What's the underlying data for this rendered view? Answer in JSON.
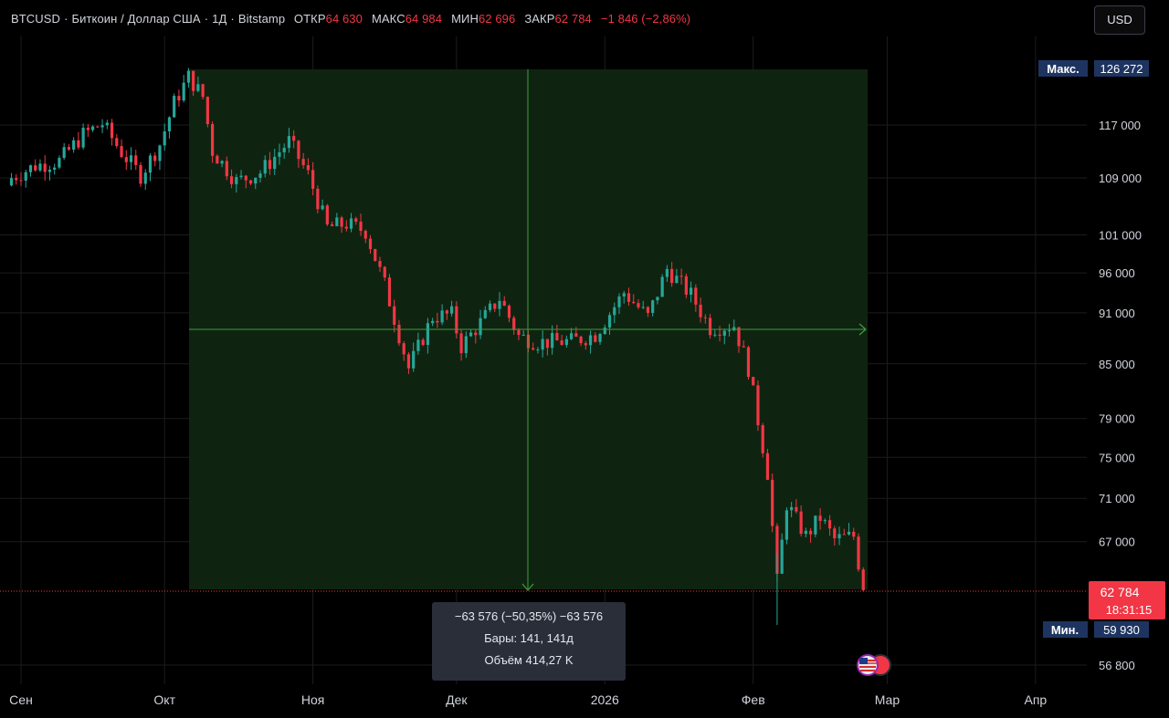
{
  "legend": {
    "symbol": "BTCUSD",
    "name": "Биткоин / Доллар США",
    "interval": "1Д",
    "exchange": "Bitstamp",
    "open_label": "ОТКР",
    "open": "64 630",
    "high_label": "МАКС",
    "high": "64 984",
    "low_label": "МИН",
    "low": "62 696",
    "close_label": "ЗАКР",
    "close": "62 784",
    "change": "−1 846 (−2,86%)"
  },
  "currency_button": "USD",
  "tooltip": {
    "line1": "−63 576 (−50,35%) −63 576",
    "line2": "Бары: 141, 141д",
    "line3": "Объём 414,27 K"
  },
  "colors": {
    "up": "#26a69a",
    "down": "#f23645",
    "range_fill": "#0f2410",
    "range_line": "#3f9d3f",
    "max_label_bg": "#1e3460"
  },
  "chart_data": {
    "type": "candlestick",
    "symbol": "BTCUSD",
    "y_scale": "log",
    "yticks": [
      "56 800",
      "67 000",
      "71 000",
      "75 000",
      "79 000",
      "85 000",
      "91 000",
      "96 000",
      "101 000",
      "109 000",
      "117 000"
    ],
    "ytick_values": [
      56800,
      67000,
      71000,
      75000,
      79000,
      85000,
      91000,
      96000,
      101000,
      109000,
      117000
    ],
    "xticks": [
      "Сен",
      "Окт",
      "Ноя",
      "Дек",
      "2026",
      "Фев",
      "Мар",
      "Апр"
    ],
    "max_label": "Макс.",
    "max_value": "126 272",
    "max": 126272,
    "min_label": "Мин.",
    "min_value": "59 930",
    "min": 59930,
    "last_price": "62 784",
    "countdown": "18:31:15",
    "last": 62784,
    "close_path": [
      [
        "2025-08-30",
        109000
      ],
      [
        "2025-09-04",
        110800
      ],
      [
        "2025-09-09",
        111500
      ],
      [
        "2025-09-14",
        115500
      ],
      [
        "2025-09-18",
        117200
      ],
      [
        "2025-09-22",
        112800
      ],
      [
        "2025-09-26",
        109400
      ],
      [
        "2025-09-30",
        114000
      ],
      [
        "2025-10-03",
        120500
      ],
      [
        "2025-10-06",
        124800
      ],
      [
        "2025-10-09",
        121500
      ],
      [
        "2025-10-11",
        113000
      ],
      [
        "2025-10-16",
        108500
      ],
      [
        "2025-10-21",
        109800
      ],
      [
        "2025-10-27",
        114500
      ],
      [
        "2025-10-31",
        109500
      ],
      [
        "2025-11-04",
        102000
      ],
      [
        "2025-11-08",
        102500
      ],
      [
        "2025-11-12",
        101500
      ],
      [
        "2025-11-16",
        94500
      ],
      [
        "2025-11-21",
        84500
      ],
      [
        "2025-11-26",
        90500
      ],
      [
        "2025-11-30",
        90800
      ],
      [
        "2025-12-02",
        87000
      ],
      [
        "2025-12-06",
        89800
      ],
      [
        "2025-12-10",
        92800
      ],
      [
        "2025-12-14",
        88200
      ],
      [
        "2025-12-18",
        87500
      ],
      [
        "2025-12-25",
        87600
      ],
      [
        "2025-12-30",
        88400
      ],
      [
        "2026-01-05",
        93500
      ],
      [
        "2026-01-10",
        90500
      ],
      [
        "2026-01-14",
        96500
      ],
      [
        "2026-01-19",
        93200
      ],
      [
        "2026-01-23",
        89200
      ],
      [
        "2026-01-28",
        89500
      ],
      [
        "2026-01-31",
        84500
      ],
      [
        "2026-02-04",
        73500
      ],
      [
        "2026-02-06",
        63500
      ],
      [
        "2026-02-08",
        70500
      ],
      [
        "2026-02-12",
        67500
      ],
      [
        "2026-02-15",
        69200
      ],
      [
        "2026-02-18",
        67200
      ],
      [
        "2026-02-22",
        67500
      ],
      [
        "2026-02-24",
        62784
      ]
    ],
    "measure": {
      "change": -63576,
      "change_pct": -50.35,
      "bars": 141,
      "volume": "414,27 K"
    }
  }
}
